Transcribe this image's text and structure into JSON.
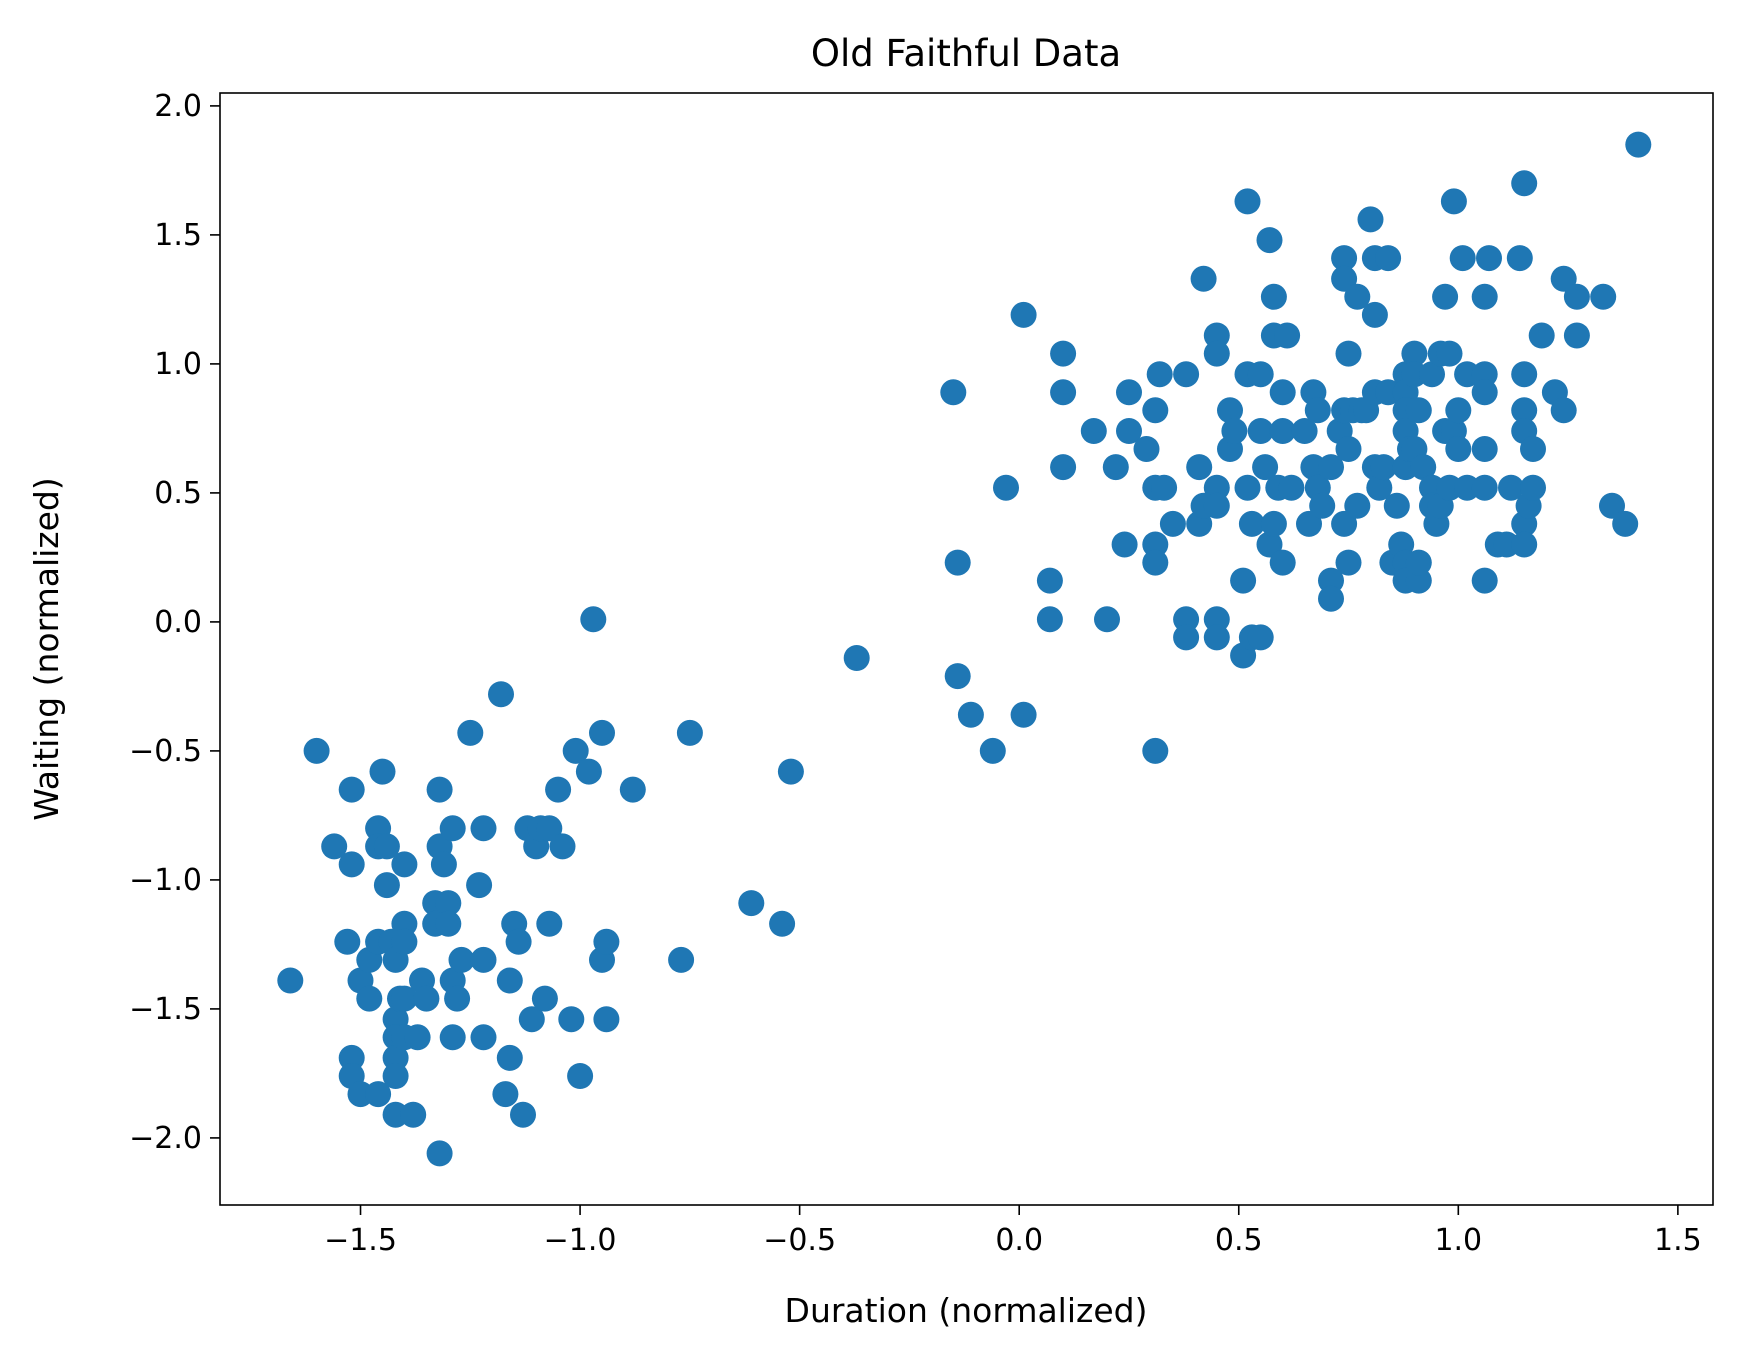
{
  "chart_data": {
    "type": "scatter",
    "title": "Old Faithful Data",
    "xlabel": "Duration (normalized)",
    "ylabel": "Waiting (normalized)",
    "xlim": [
      -1.82,
      1.58
    ],
    "ylim": [
      -2.26,
      2.05
    ],
    "xticks": [
      -1.5,
      -1.0,
      -0.5,
      0.0,
      0.5,
      1.0,
      1.5
    ],
    "xtick_labels": [
      "−1.5",
      "−1.0",
      "−0.5",
      "0.0",
      "0.5",
      "1.0",
      "1.5"
    ],
    "yticks": [
      -2.0,
      -1.5,
      -1.0,
      -0.5,
      0.0,
      0.5,
      1.0,
      1.5,
      2.0
    ],
    "ytick_labels": [
      "−2.0",
      "−1.5",
      "−1.0",
      "−0.5",
      "0.0",
      "0.5",
      "1.0",
      "1.5",
      "2.0"
    ],
    "grid": false,
    "marker_color": "#1f77b4",
    "points": [
      [
        -1.66,
        -1.39
      ],
      [
        -1.6,
        -0.5
      ],
      [
        -1.56,
        -0.87
      ],
      [
        -1.53,
        -1.24
      ],
      [
        -1.52,
        -0.65
      ],
      [
        -1.52,
        -0.94
      ],
      [
        -1.52,
        -1.69
      ],
      [
        -1.52,
        -1.76
      ],
      [
        -1.5,
        -1.39
      ],
      [
        -1.5,
        -1.83
      ],
      [
        -1.48,
        -1.31
      ],
      [
        -1.48,
        -1.46
      ],
      [
        -1.46,
        -0.8
      ],
      [
        -1.46,
        -0.87
      ],
      [
        -1.46,
        -1.24
      ],
      [
        -1.46,
        -1.83
      ],
      [
        -1.45,
        -0.58
      ],
      [
        -1.44,
        -1.02
      ],
      [
        -1.44,
        -0.87
      ],
      [
        -1.43,
        -1.24
      ],
      [
        -1.42,
        -1.31
      ],
      [
        -1.42,
        -1.54
      ],
      [
        -1.42,
        -1.61
      ],
      [
        -1.42,
        -1.69
      ],
      [
        -1.42,
        -1.76
      ],
      [
        -1.42,
        -1.91
      ],
      [
        -1.41,
        -1.46
      ],
      [
        -1.4,
        -0.94
      ],
      [
        -1.4,
        -1.17
      ],
      [
        -1.4,
        -1.24
      ],
      [
        -1.4,
        -1.46
      ],
      [
        -1.4,
        -1.61
      ],
      [
        -1.38,
        -1.91
      ],
      [
        -1.37,
        -1.61
      ],
      [
        -1.36,
        -1.39
      ],
      [
        -1.35,
        -1.46
      ],
      [
        -1.33,
        -1.09
      ],
      [
        -1.33,
        -1.17
      ],
      [
        -1.32,
        -0.65
      ],
      [
        -1.32,
        -0.87
      ],
      [
        -1.32,
        -2.06
      ],
      [
        -1.31,
        -0.94
      ],
      [
        -1.3,
        -1.09
      ],
      [
        -1.3,
        -1.17
      ],
      [
        -1.29,
        -0.8
      ],
      [
        -1.29,
        -1.39
      ],
      [
        -1.29,
        -1.61
      ],
      [
        -1.28,
        -1.46
      ],
      [
        -1.27,
        -1.31
      ],
      [
        -1.25,
        -0.43
      ],
      [
        -1.23,
        -1.02
      ],
      [
        -1.22,
        -0.8
      ],
      [
        -1.22,
        -1.31
      ],
      [
        -1.22,
        -1.61
      ],
      [
        -1.18,
        -0.28
      ],
      [
        -1.17,
        -1.83
      ],
      [
        -1.16,
        -1.39
      ],
      [
        -1.16,
        -1.69
      ],
      [
        -1.15,
        -1.17
      ],
      [
        -1.14,
        -1.24
      ],
      [
        -1.13,
        -1.91
      ],
      [
        -1.12,
        -0.8
      ],
      [
        -1.11,
        -1.54
      ],
      [
        -1.1,
        -0.87
      ],
      [
        -1.09,
        -0.8
      ],
      [
        -1.08,
        -1.46
      ],
      [
        -1.07,
        -0.8
      ],
      [
        -1.07,
        -1.17
      ],
      [
        -1.05,
        -0.65
      ],
      [
        -1.04,
        -0.87
      ],
      [
        -1.02,
        -1.54
      ],
      [
        -1.01,
        -0.5
      ],
      [
        -1.0,
        -1.76
      ],
      [
        -0.98,
        -0.58
      ],
      [
        -0.97,
        0.01
      ],
      [
        -0.95,
        -0.43
      ],
      [
        -0.95,
        -1.31
      ],
      [
        -0.94,
        -1.24
      ],
      [
        -0.94,
        -1.54
      ],
      [
        -0.88,
        -0.65
      ],
      [
        -0.77,
        -1.31
      ],
      [
        -0.75,
        -0.43
      ],
      [
        -0.61,
        -1.09
      ],
      [
        -0.54,
        -1.17
      ],
      [
        -0.52,
        -0.58
      ],
      [
        -0.37,
        -0.14
      ],
      [
        -0.15,
        0.89
      ],
      [
        -0.14,
        0.23
      ],
      [
        -0.14,
        -0.21
      ],
      [
        -0.11,
        -0.36
      ],
      [
        -0.06,
        -0.5
      ],
      [
        -0.03,
        0.52
      ],
      [
        0.01,
        1.19
      ],
      [
        0.01,
        -0.36
      ],
      [
        0.07,
        0.16
      ],
      [
        0.07,
        0.01
      ],
      [
        0.1,
        1.04
      ],
      [
        0.1,
        0.89
      ],
      [
        0.1,
        0.6
      ],
      [
        0.17,
        0.74
      ],
      [
        0.2,
        0.01
      ],
      [
        0.22,
        0.6
      ],
      [
        0.24,
        0.3
      ],
      [
        0.25,
        0.74
      ],
      [
        0.25,
        0.89
      ],
      [
        0.29,
        0.67
      ],
      [
        0.31,
        0.82
      ],
      [
        0.31,
        0.52
      ],
      [
        0.31,
        0.3
      ],
      [
        0.31,
        0.23
      ],
      [
        0.31,
        -0.5
      ],
      [
        0.32,
        0.96
      ],
      [
        0.33,
        0.52
      ],
      [
        0.35,
        0.38
      ],
      [
        0.38,
        0.96
      ],
      [
        0.38,
        0.01
      ],
      [
        0.38,
        -0.06
      ],
      [
        0.41,
        0.6
      ],
      [
        0.41,
        0.38
      ],
      [
        0.42,
        1.33
      ],
      [
        0.42,
        0.45
      ],
      [
        0.45,
        1.11
      ],
      [
        0.45,
        1.04
      ],
      [
        0.45,
        0.52
      ],
      [
        0.45,
        0.45
      ],
      [
        0.45,
        0.01
      ],
      [
        0.45,
        -0.06
      ],
      [
        0.48,
        0.82
      ],
      [
        0.48,
        0.67
      ],
      [
        0.49,
        0.74
      ],
      [
        0.51,
        0.16
      ],
      [
        0.51,
        -0.13
      ],
      [
        0.52,
        1.63
      ],
      [
        0.52,
        0.96
      ],
      [
        0.52,
        0.52
      ],
      [
        0.53,
        0.38
      ],
      [
        0.53,
        -0.06
      ],
      [
        0.55,
        0.96
      ],
      [
        0.55,
        0.74
      ],
      [
        0.55,
        -0.06
      ],
      [
        0.56,
        0.6
      ],
      [
        0.57,
        1.48
      ],
      [
        0.57,
        0.3
      ],
      [
        0.58,
        1.26
      ],
      [
        0.58,
        1.11
      ],
      [
        0.58,
        0.38
      ],
      [
        0.59,
        0.52
      ],
      [
        0.6,
        0.89
      ],
      [
        0.6,
        0.74
      ],
      [
        0.6,
        0.23
      ],
      [
        0.61,
        1.11
      ],
      [
        0.62,
        0.52
      ],
      [
        0.65,
        0.74
      ],
      [
        0.66,
        0.38
      ],
      [
        0.67,
        0.89
      ],
      [
        0.67,
        0.6
      ],
      [
        0.68,
        0.82
      ],
      [
        0.68,
        0.52
      ],
      [
        0.69,
        0.45
      ],
      [
        0.71,
        0.6
      ],
      [
        0.71,
        0.16
      ],
      [
        0.71,
        0.09
      ],
      [
        0.73,
        0.74
      ],
      [
        0.74,
        1.41
      ],
      [
        0.74,
        1.33
      ],
      [
        0.74,
        0.82
      ],
      [
        0.74,
        0.38
      ],
      [
        0.75,
        1.04
      ],
      [
        0.75,
        0.67
      ],
      [
        0.75,
        0.23
      ],
      [
        0.76,
        0.82
      ],
      [
        0.77,
        1.26
      ],
      [
        0.77,
        0.45
      ],
      [
        0.78,
        0.82
      ],
      [
        0.79,
        0.82
      ],
      [
        0.8,
        1.56
      ],
      [
        0.81,
        1.41
      ],
      [
        0.81,
        1.19
      ],
      [
        0.81,
        0.89
      ],
      [
        0.81,
        0.6
      ],
      [
        0.82,
        0.52
      ],
      [
        0.83,
        0.6
      ],
      [
        0.84,
        1.41
      ],
      [
        0.84,
        0.89
      ],
      [
        0.85,
        0.23
      ],
      [
        0.86,
        0.45
      ],
      [
        0.87,
        0.3
      ],
      [
        0.88,
        0.96
      ],
      [
        0.88,
        0.89
      ],
      [
        0.88,
        0.82
      ],
      [
        0.88,
        0.74
      ],
      [
        0.88,
        0.6
      ],
      [
        0.88,
        0.23
      ],
      [
        0.88,
        0.16
      ],
      [
        0.89,
        0.67
      ],
      [
        0.9,
        1.04
      ],
      [
        0.9,
        0.96
      ],
      [
        0.9,
        0.67
      ],
      [
        0.91,
        0.82
      ],
      [
        0.91,
        0.16
      ],
      [
        0.91,
        0.23
      ],
      [
        0.92,
        0.6
      ],
      [
        0.94,
        0.96
      ],
      [
        0.94,
        0.52
      ],
      [
        0.94,
        0.45
      ],
      [
        0.95,
        0.38
      ],
      [
        0.96,
        1.04
      ],
      [
        0.96,
        0.45
      ],
      [
        0.97,
        1.26
      ],
      [
        0.97,
        0.74
      ],
      [
        0.98,
        1.04
      ],
      [
        0.98,
        0.52
      ],
      [
        0.99,
        1.63
      ],
      [
        0.99,
        0.74
      ],
      [
        1.0,
        0.82
      ],
      [
        1.0,
        0.67
      ],
      [
        1.01,
        1.41
      ],
      [
        1.02,
        0.96
      ],
      [
        1.02,
        0.52
      ],
      [
        1.06,
        1.26
      ],
      [
        1.06,
        0.96
      ],
      [
        1.06,
        0.89
      ],
      [
        1.06,
        0.67
      ],
      [
        1.06,
        0.52
      ],
      [
        1.06,
        0.16
      ],
      [
        1.07,
        1.41
      ],
      [
        1.09,
        0.3
      ],
      [
        1.11,
        0.3
      ],
      [
        1.12,
        0.52
      ],
      [
        1.14,
        1.41
      ],
      [
        1.15,
        1.7
      ],
      [
        1.15,
        0.96
      ],
      [
        1.15,
        0.82
      ],
      [
        1.15,
        0.74
      ],
      [
        1.15,
        0.38
      ],
      [
        1.15,
        0.3
      ],
      [
        1.16,
        0.45
      ],
      [
        1.17,
        0.52
      ],
      [
        1.17,
        0.67
      ],
      [
        1.19,
        1.11
      ],
      [
        1.22,
        0.89
      ],
      [
        1.24,
        1.33
      ],
      [
        1.24,
        0.82
      ],
      [
        1.27,
        1.26
      ],
      [
        1.27,
        1.11
      ],
      [
        1.33,
        1.26
      ],
      [
        1.35,
        0.45
      ],
      [
        1.38,
        0.38
      ],
      [
        1.41,
        1.85
      ]
    ]
  }
}
